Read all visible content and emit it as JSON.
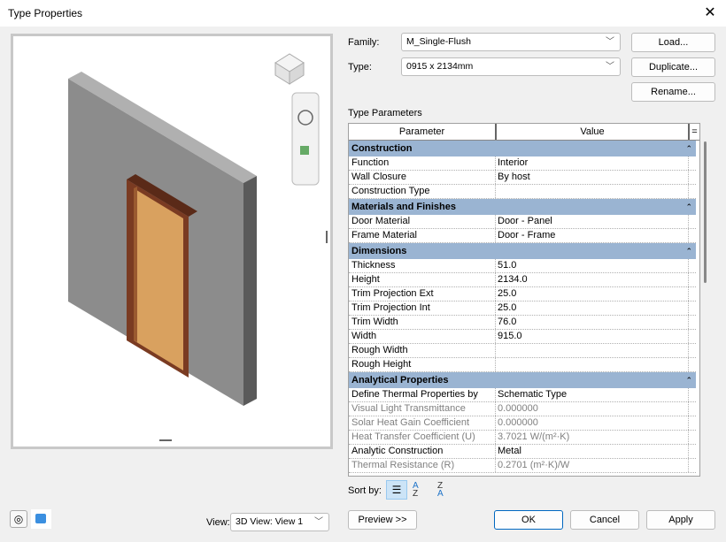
{
  "window": {
    "title": "Type Properties",
    "close_icon": "close-icon"
  },
  "family": {
    "label": "Family:",
    "value": "M_Single-Flush"
  },
  "type": {
    "label": "Type:",
    "value": "0915 x 2134mm"
  },
  "buttons": {
    "load": "Load...",
    "duplicate": "Duplicate...",
    "rename": "Rename...",
    "preview": "Preview >>",
    "ok": "OK",
    "cancel": "Cancel",
    "apply": "Apply"
  },
  "type_parameters": {
    "label": "Type Parameters",
    "col_parameter": "Parameter",
    "col_value": "Value",
    "col_eq": "=",
    "groups": [
      {
        "name": "Construction",
        "rows": [
          {
            "p": "Function",
            "v": "Interior"
          },
          {
            "p": "Wall Closure",
            "v": "By host"
          },
          {
            "p": "Construction Type",
            "v": ""
          }
        ]
      },
      {
        "name": "Materials and Finishes",
        "rows": [
          {
            "p": "Door Material",
            "v": "Door - Panel"
          },
          {
            "p": "Frame Material",
            "v": "Door - Frame"
          }
        ]
      },
      {
        "name": "Dimensions",
        "rows": [
          {
            "p": "Thickness",
            "v": "51.0"
          },
          {
            "p": "Height",
            "v": "2134.0"
          },
          {
            "p": "Trim Projection Ext",
            "v": "25.0"
          },
          {
            "p": "Trim Projection Int",
            "v": "25.0"
          },
          {
            "p": "Trim Width",
            "v": "76.0"
          },
          {
            "p": "Width",
            "v": "915.0"
          },
          {
            "p": "Rough Width",
            "v": ""
          },
          {
            "p": "Rough Height",
            "v": ""
          }
        ]
      },
      {
        "name": "Analytical Properties",
        "rows": [
          {
            "p": "Define Thermal Properties by",
            "v": "Schematic Type"
          },
          {
            "p": "Visual Light Transmittance",
            "v": "0.000000",
            "dim": true
          },
          {
            "p": "Solar Heat Gain Coefficient",
            "v": "0.000000",
            "dim": true
          },
          {
            "p": "Heat Transfer Coefficient (U)",
            "v": "3.7021 W/(m²·K)",
            "dim": true
          },
          {
            "p": "Analytic Construction",
            "v": "Metal"
          },
          {
            "p": "Thermal Resistance (R)",
            "v": "0.2701 (m²·K)/W",
            "dim": true
          }
        ]
      }
    ]
  },
  "sort": {
    "label": "Sort by:"
  },
  "view": {
    "label": "View:",
    "value": "3D View: View 1"
  },
  "colors": {
    "group_header": "#9ab4d2",
    "door_panel": "#d9a15f",
    "door_frame": "#7a3b22",
    "wall": "#8a8a8a"
  }
}
